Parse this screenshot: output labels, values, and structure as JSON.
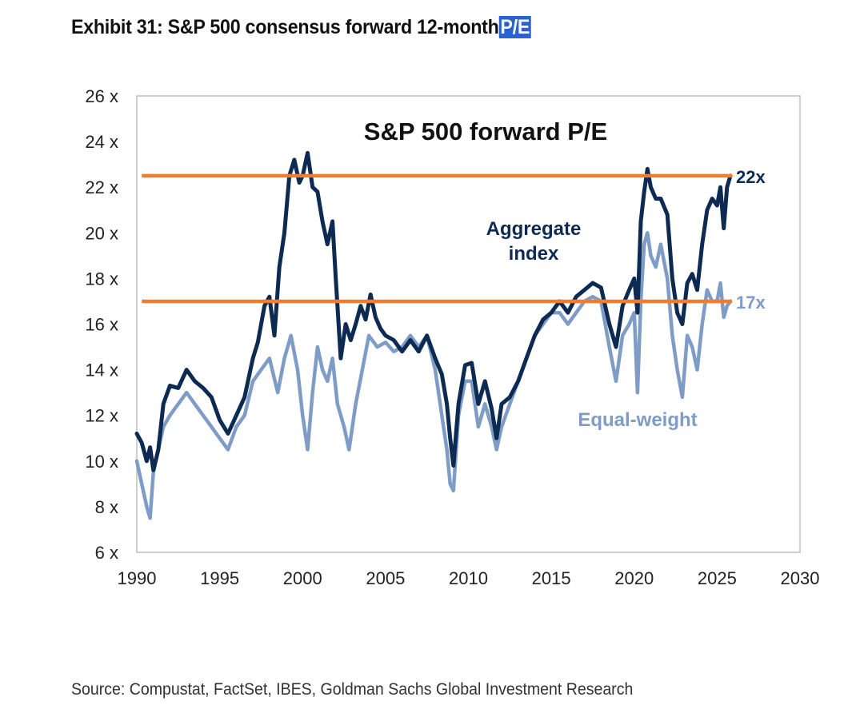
{
  "header": {
    "title": "Exhibit 31: S&P 500 consensus forward 12-month",
    "title_highlight": "P/E"
  },
  "footer": {
    "source": "Source: Compustat, FactSet, IBES, Goldman Sachs Global Investment Research"
  },
  "colors": {
    "aggregate": "#0d2b52",
    "equal_weight": "#7e9cc6",
    "reference": "#ee7d31",
    "ref_label_22": "#0d2b52",
    "ref_label_17": "#7e9cc6"
  },
  "chart_data": {
    "type": "line",
    "title": "S&P 500 forward P/E",
    "xlabel": "",
    "ylabel": "",
    "xlim": [
      1990,
      2030
    ],
    "ylim": [
      6,
      26
    ],
    "x_ticks": [
      1990,
      1995,
      2000,
      2005,
      2010,
      2015,
      2020,
      2025,
      2030
    ],
    "x_tick_labels": [
      "1990",
      "1995",
      "2000",
      "2005",
      "2010",
      "2015",
      "2020",
      "2025",
      "2030"
    ],
    "y_ticks": [
      6,
      8,
      10,
      12,
      14,
      16,
      18,
      20,
      22,
      24,
      26
    ],
    "y_tick_labels": [
      "6 x",
      "8 x",
      "10 x",
      "12 x",
      "14 x",
      "16 x",
      "18 x",
      "20 x",
      "22 x",
      "24 x",
      "26 x"
    ],
    "reference_lines": [
      {
        "y": 22.5,
        "x_start": 1990.3,
        "x_end": 2025.9,
        "label": "22x"
      },
      {
        "y": 17,
        "x_start": 1990.3,
        "x_end": 2025.9,
        "label": "17x"
      }
    ],
    "annotations": {
      "aggregate_line1": "Aggregate",
      "aggregate_line2": "index",
      "equal_weight": "Equal-weight"
    },
    "series": [
      {
        "name": "Aggregate index",
        "x": [
          1990.0,
          1990.3,
          1990.6,
          1990.8,
          1991.0,
          1991.3,
          1991.6,
          1992.0,
          1992.5,
          1993.0,
          1993.5,
          1994.0,
          1994.5,
          1995.0,
          1995.5,
          1996.0,
          1996.5,
          1997.0,
          1997.3,
          1997.7,
          1998.0,
          1998.3,
          1998.6,
          1998.9,
          1999.2,
          1999.5,
          1999.8,
          2000.0,
          2000.3,
          2000.6,
          2000.9,
          2001.2,
          2001.5,
          2001.8,
          2002.0,
          2002.3,
          2002.6,
          2002.9,
          2003.2,
          2003.5,
          2003.8,
          2004.1,
          2004.4,
          2004.7,
          2005.0,
          2005.5,
          2006.0,
          2006.5,
          2007.0,
          2007.5,
          2008.0,
          2008.4,
          2008.7,
          2008.9,
          2009.1,
          2009.4,
          2009.8,
          2010.2,
          2010.6,
          2011.0,
          2011.4,
          2011.7,
          2012.0,
          2012.5,
          2013.0,
          2013.5,
          2014.0,
          2014.5,
          2015.0,
          2015.5,
          2016.0,
          2016.5,
          2017.0,
          2017.5,
          2018.0,
          2018.5,
          2018.9,
          2019.3,
          2019.7,
          2020.0,
          2020.2,
          2020.4,
          2020.6,
          2020.8,
          2021.0,
          2021.3,
          2021.6,
          2022.0,
          2022.3,
          2022.6,
          2022.9,
          2023.2,
          2023.5,
          2023.8,
          2024.1,
          2024.4,
          2024.7,
          2025.0,
          2025.2,
          2025.4,
          2025.6,
          2025.8
        ],
        "values": [
          11.2,
          10.8,
          10.0,
          10.6,
          9.6,
          10.5,
          12.5,
          13.3,
          13.2,
          14.0,
          13.5,
          13.2,
          12.8,
          11.8,
          11.2,
          12.0,
          12.8,
          14.5,
          15.2,
          16.8,
          17.2,
          15.5,
          18.5,
          20.0,
          22.5,
          23.2,
          22.2,
          22.5,
          23.5,
          22.0,
          21.8,
          20.5,
          19.5,
          20.5,
          18.0,
          14.5,
          16.0,
          15.3,
          16.0,
          16.8,
          16.2,
          17.3,
          16.3,
          15.8,
          15.5,
          15.3,
          14.8,
          15.3,
          14.8,
          15.5,
          14.5,
          13.8,
          12.5,
          11.0,
          9.8,
          12.5,
          14.2,
          14.3,
          12.5,
          13.5,
          12.3,
          11.0,
          12.5,
          12.8,
          13.5,
          14.5,
          15.5,
          16.2,
          16.5,
          17.0,
          16.5,
          17.2,
          17.5,
          17.8,
          17.6,
          16.0,
          15.0,
          16.8,
          17.5,
          18.0,
          16.5,
          20.5,
          21.8,
          22.8,
          22.0,
          21.5,
          21.5,
          20.8,
          18.0,
          16.5,
          16.0,
          17.8,
          18.2,
          17.5,
          19.5,
          21.0,
          21.5,
          21.2,
          22.0,
          20.2,
          22.0,
          22.5
        ]
      },
      {
        "name": "Equal-weight",
        "x": [
          1990.0,
          1990.3,
          1990.6,
          1990.8,
          1991.0,
          1991.3,
          1991.6,
          1992.0,
          1992.5,
          1993.0,
          1993.5,
          1994.0,
          1994.5,
          1995.0,
          1995.5,
          1996.0,
          1996.5,
          1997.0,
          1997.5,
          1998.0,
          1998.5,
          1998.9,
          1999.3,
          1999.7,
          2000.0,
          2000.3,
          2000.6,
          2000.9,
          2001.2,
          2001.5,
          2001.8,
          2002.1,
          2002.5,
          2002.8,
          2003.2,
          2003.6,
          2004.0,
          2004.5,
          2005.0,
          2005.5,
          2006.0,
          2006.5,
          2007.0,
          2007.5,
          2008.0,
          2008.4,
          2008.7,
          2008.9,
          2009.1,
          2009.4,
          2009.8,
          2010.2,
          2010.6,
          2011.0,
          2011.4,
          2011.7,
          2012.0,
          2012.5,
          2013.0,
          2013.5,
          2014.0,
          2014.5,
          2015.0,
          2015.5,
          2016.0,
          2016.5,
          2017.0,
          2017.5,
          2018.0,
          2018.5,
          2018.9,
          2019.3,
          2019.7,
          2020.0,
          2020.2,
          2020.4,
          2020.6,
          2020.8,
          2021.0,
          2021.3,
          2021.6,
          2022.0,
          2022.3,
          2022.6,
          2022.9,
          2023.2,
          2023.5,
          2023.8,
          2024.1,
          2024.4,
          2024.7,
          2025.0,
          2025.2,
          2025.4,
          2025.6,
          2025.8
        ],
        "values": [
          10.0,
          9.0,
          8.0,
          7.5,
          9.5,
          10.5,
          11.5,
          12.0,
          12.5,
          13.0,
          12.5,
          12.0,
          11.5,
          11.0,
          10.5,
          11.5,
          12.0,
          13.5,
          14.0,
          14.5,
          13.0,
          14.5,
          15.5,
          14.0,
          12.0,
          10.5,
          13.0,
          15.0,
          14.0,
          13.5,
          14.5,
          12.5,
          11.5,
          10.5,
          12.5,
          14.0,
          15.5,
          15.0,
          15.2,
          14.8,
          15.0,
          15.5,
          15.0,
          15.5,
          14.0,
          12.0,
          10.5,
          9.0,
          8.7,
          12.0,
          13.5,
          13.5,
          11.5,
          12.5,
          11.5,
          10.5,
          11.5,
          12.5,
          13.5,
          14.5,
          15.5,
          16.0,
          16.5,
          16.5,
          16.0,
          16.5,
          17.0,
          17.2,
          17.0,
          15.0,
          13.5,
          15.5,
          16.0,
          16.5,
          13.0,
          17.0,
          19.5,
          20.0,
          19.0,
          18.5,
          19.5,
          18.0,
          15.5,
          14.0,
          12.8,
          15.5,
          15.0,
          14.0,
          16.0,
          17.5,
          17.0,
          17.0,
          17.8,
          16.3,
          16.8,
          17.0
        ]
      }
    ]
  }
}
